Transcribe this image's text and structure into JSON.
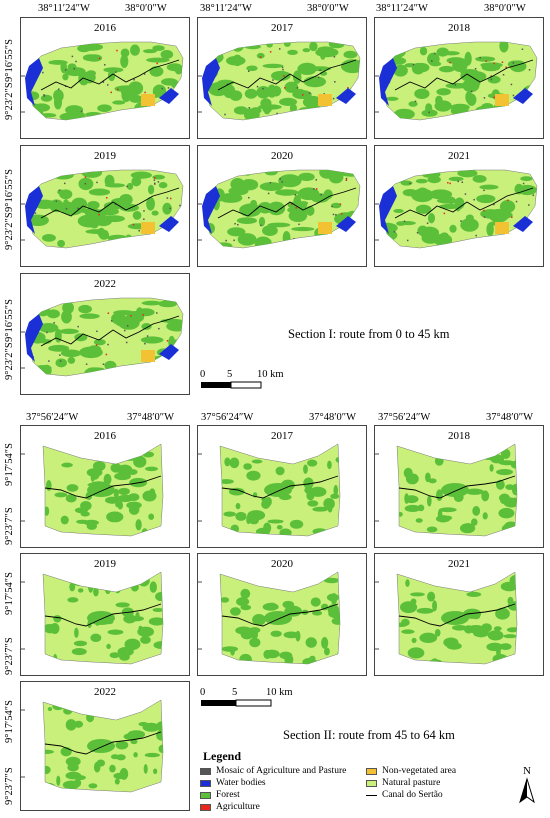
{
  "section1": {
    "lon_left": "38°11′24″W",
    "lon_right": "38°0′0″W",
    "lat_top": "9°16′55″S",
    "lat_bottom": "9°23′2″S",
    "years": [
      "2016",
      "2017",
      "2018",
      "2019",
      "2020",
      "2021",
      "2022"
    ],
    "caption": "Section I: route from 0 to 45 km",
    "scale": {
      "l0": "0",
      "l1": "5",
      "l2": "10 km"
    }
  },
  "section2": {
    "lon_left": "37°56′24″W",
    "lon_right": "37°48′0″W",
    "lat_top": "9°17′54″S",
    "lat_bottom": "9°23′7″S",
    "years": [
      "2016",
      "2017",
      "2018",
      "2019",
      "2020",
      "2021",
      "2022"
    ],
    "caption": "Section II: route from 45 to 64 km",
    "scale": {
      "l0": "0",
      "l1": "5",
      "l2": "10 km"
    }
  },
  "legend": {
    "title": "Legend",
    "items": [
      {
        "label": "Mosaic of Agriculture and Pasture",
        "color": "#555555"
      },
      {
        "label": "Water bodies",
        "color": "#1a2fd6"
      },
      {
        "label": "Forest",
        "color": "#5cbf3a"
      },
      {
        "label": "Agriculture",
        "color": "#e8281e"
      },
      {
        "label": "Non-vegetated area",
        "color": "#f2c233"
      },
      {
        "label": "Natural pasture",
        "color": "#c8f07a"
      },
      {
        "label": "Canal do Sertão",
        "color": "#000000"
      }
    ]
  },
  "north": "N"
}
